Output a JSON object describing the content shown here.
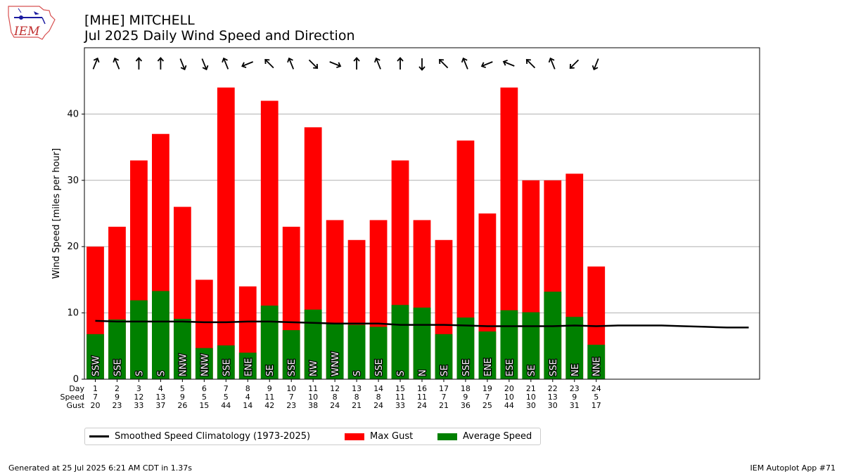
{
  "header": {
    "logo_text": "IEM",
    "station_title": "[MHE] MITCHELL",
    "subtitle": "Jul 2025 Daily Wind Speed and Direction"
  },
  "colors": {
    "gust": "#ff0000",
    "speed": "#008000",
    "climatology": "#000000",
    "grid": "#b0b0b0"
  },
  "chart_data": {
    "type": "bar",
    "ylabel": "Wind Speed [miles per hour]",
    "ylim": [
      0,
      50
    ],
    "yticks": [
      0,
      10,
      20,
      30,
      40
    ],
    "xlim": [
      0.5,
      31.5
    ],
    "grid": true,
    "legend_position": "below",
    "row_labels": [
      "Day",
      "Speed",
      "Gust"
    ],
    "days": [
      1,
      2,
      3,
      4,
      5,
      6,
      7,
      8,
      9,
      10,
      11,
      12,
      13,
      14,
      15,
      16,
      17,
      18,
      19,
      20,
      21,
      22,
      23,
      24
    ],
    "speed_labels": [
      7,
      9,
      12,
      13,
      9,
      5,
      5,
      4,
      11,
      7,
      10,
      8,
      8,
      8,
      11,
      11,
      7,
      9,
      7,
      10,
      10,
      13,
      9,
      5
    ],
    "gust_labels": [
      20,
      23,
      33,
      37,
      26,
      15,
      44,
      14,
      42,
      23,
      38,
      24,
      21,
      24,
      33,
      24,
      21,
      36,
      25,
      44,
      30,
      30,
      31,
      17
    ],
    "series": [
      {
        "name": "Max Gust",
        "values": [
          20,
          23,
          33,
          37,
          26,
          15,
          44,
          14,
          42,
          23,
          38,
          24,
          21,
          24,
          33,
          24,
          21,
          36,
          25,
          44,
          30,
          30,
          31,
          17
        ]
      },
      {
        "name": "Average Speed",
        "values": [
          6.8,
          9.0,
          11.9,
          13.3,
          9.1,
          4.7,
          5.1,
          4.0,
          11.1,
          7.4,
          10.5,
          8.3,
          8.2,
          7.9,
          11.2,
          10.8,
          6.8,
          9.3,
          7.2,
          10.4,
          10.1,
          13.2,
          9.4,
          5.2
        ]
      },
      {
        "name": "Smoothed Speed Climatology (1973-2025)",
        "x": [
          1,
          2,
          3,
          4,
          5,
          6,
          7,
          8,
          9,
          10,
          11,
          12,
          13,
          14,
          15,
          16,
          17,
          18,
          19,
          20,
          21,
          22,
          23,
          24,
          25,
          26,
          27,
          28,
          29,
          30,
          31
        ],
        "values": [
          8.8,
          8.7,
          8.7,
          8.7,
          8.7,
          8.6,
          8.6,
          8.7,
          8.7,
          8.6,
          8.5,
          8.4,
          8.4,
          8.4,
          8.2,
          8.2,
          8.2,
          8.1,
          8.0,
          8.0,
          8.0,
          8.0,
          8.1,
          8.0,
          8.1,
          8.1,
          8.1,
          8.0,
          7.9,
          7.8,
          7.8
        ]
      }
    ],
    "directions": [
      "SSW",
      "SSE",
      "S",
      "S",
      "NNW",
      "NNW",
      "SSE",
      "ENE",
      "SE",
      "SSE",
      "NW",
      "WNW",
      "S",
      "SSE",
      "S",
      "N",
      "SE",
      "SSE",
      "ENE",
      "ESE",
      "SE",
      "SSE",
      "NE",
      "NNE"
    ],
    "arrow_degrees": [
      202,
      158,
      180,
      180,
      338,
      338,
      158,
      68,
      135,
      158,
      315,
      292,
      180,
      158,
      180,
      0,
      135,
      158,
      68,
      112,
      135,
      158,
      45,
      22
    ]
  },
  "legend": {
    "items": [
      "Smoothed Speed Climatology (1973-2025)",
      "Max Gust",
      "Average Speed"
    ]
  },
  "footer": {
    "left": "Generated at 25 Jul 2025 6:21 AM CDT in 1.37s",
    "right": "IEM Autoplot App #71"
  }
}
